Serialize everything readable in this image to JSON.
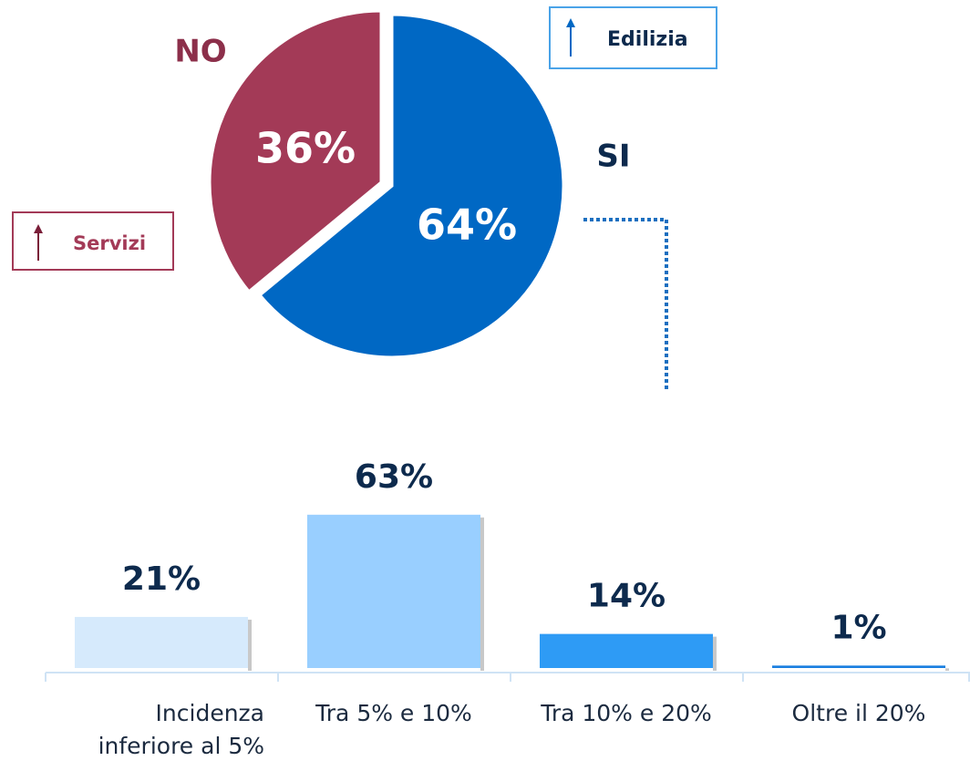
{
  "chart_data": [
    {
      "type": "pie",
      "categories": [
        "SI",
        "NO"
      ],
      "values": [
        64,
        36
      ],
      "value_labels": [
        "64%",
        "36%"
      ],
      "colors": [
        "#0068c4",
        "#a33a57"
      ],
      "annotations": [
        "Edilizia",
        "Servizi"
      ]
    },
    {
      "type": "bar",
      "categories": [
        "Incidenza inferiore al 5%",
        "Tra 5% e 10%",
        "Tra 10% e 20%",
        "Oltre il 20%"
      ],
      "values": [
        21,
        63,
        14,
        1
      ],
      "value_labels": [
        "21%",
        "63%",
        "14%",
        "1%"
      ],
      "colors": [
        "#d6eafc",
        "#99cfff",
        "#2e9bf5",
        "#1a7fe0"
      ]
    }
  ]
}
